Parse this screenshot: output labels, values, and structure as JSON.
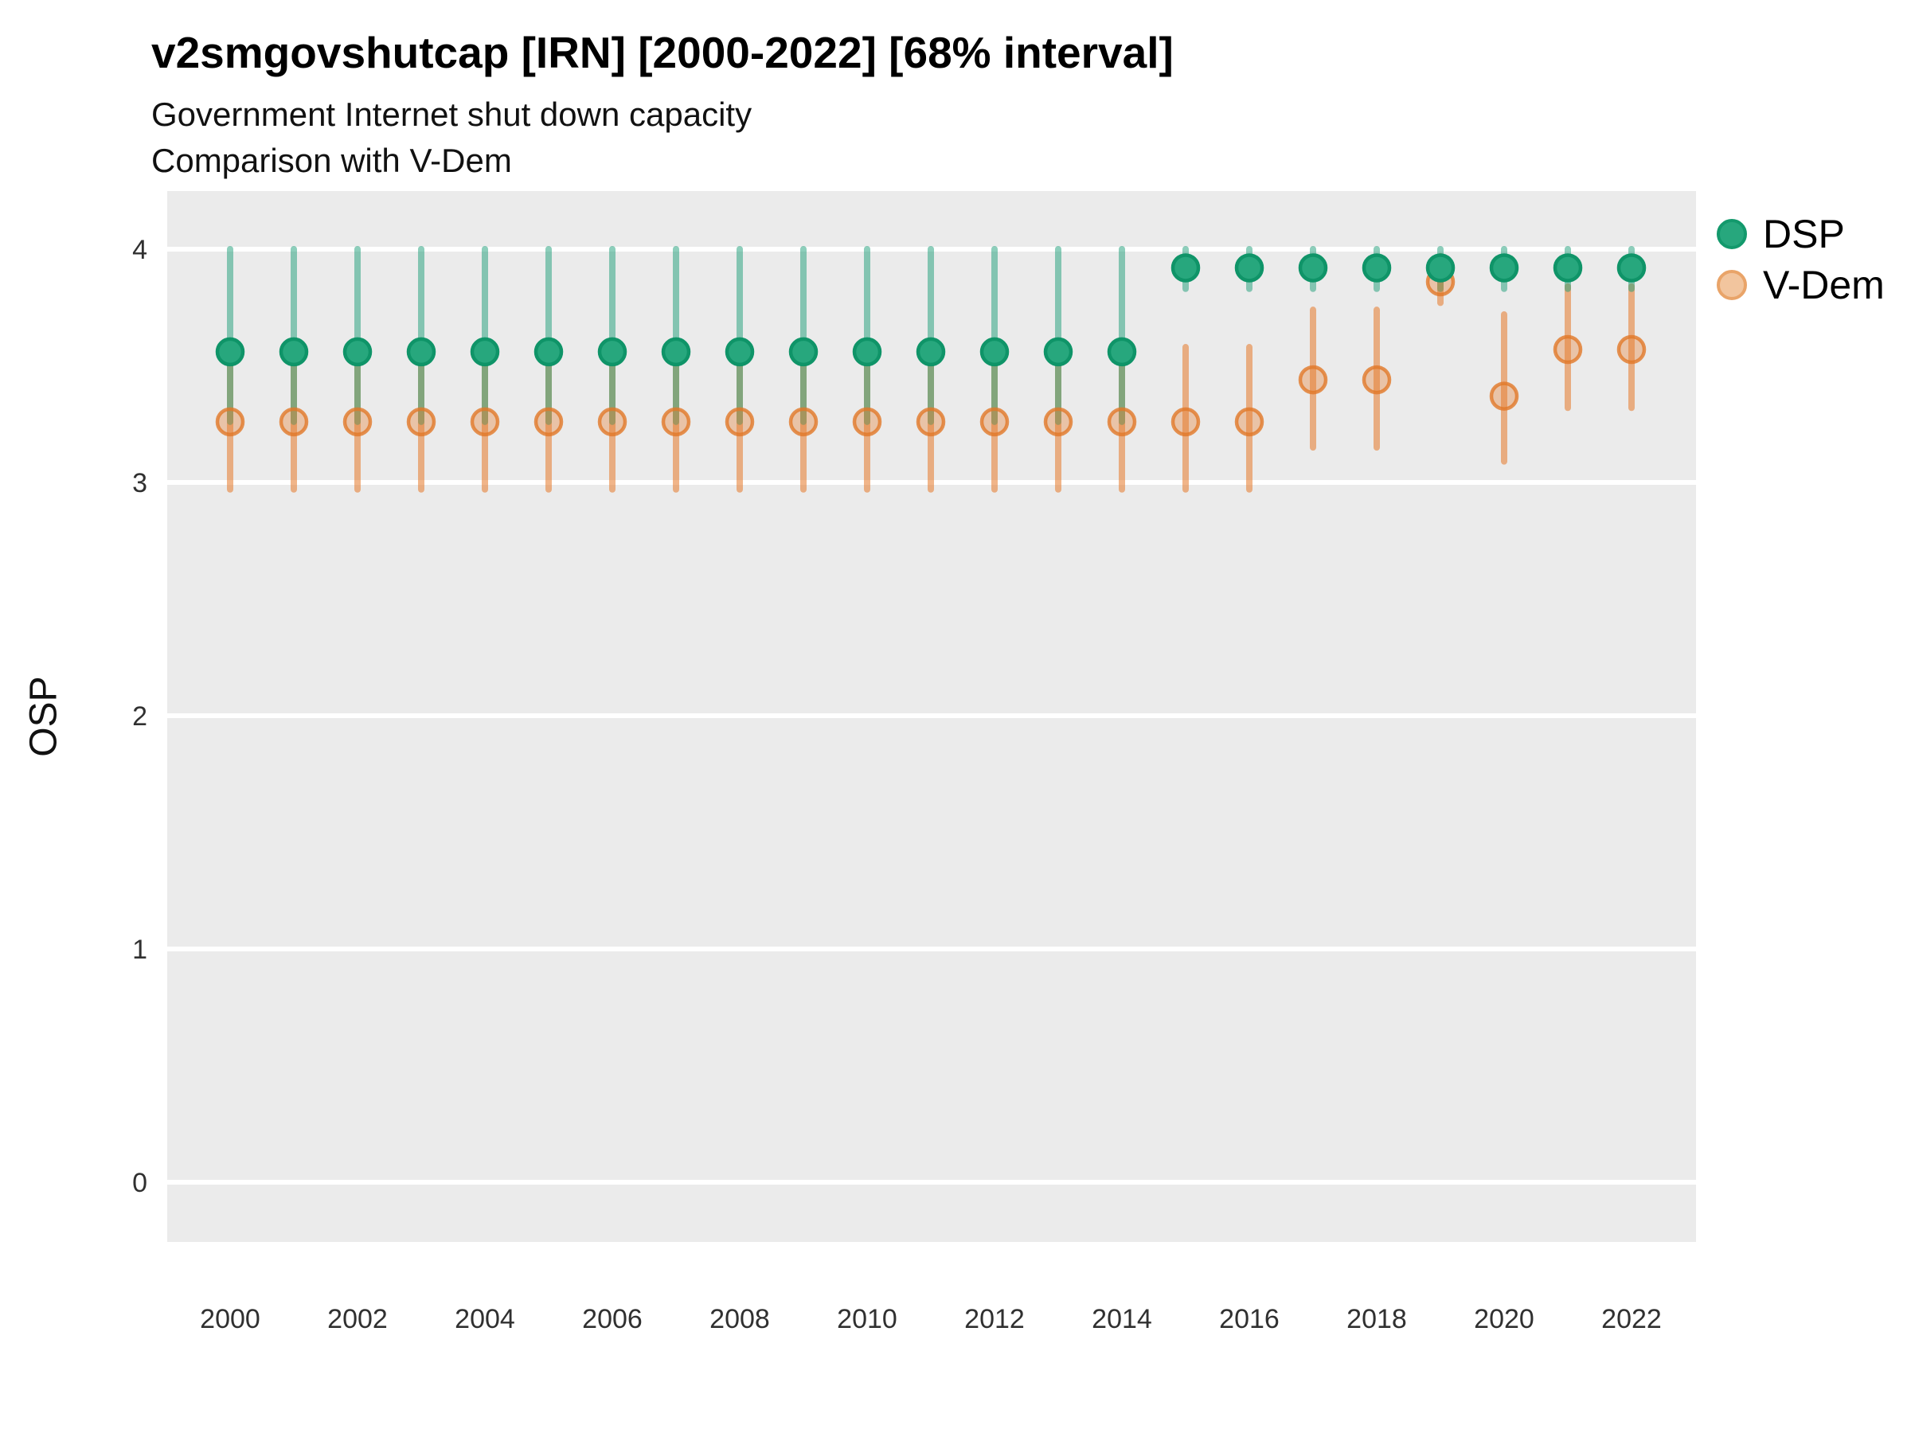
{
  "header": {
    "title": "v2smgovshutcap [IRN] [2000-2022] [68% interval]",
    "subtitle1": "Government Internet shut down capacity",
    "subtitle2": "Comparison with V-Dem"
  },
  "axes": {
    "y_title": "OSP",
    "y_tick_labels": [
      "4",
      "3",
      "2",
      "1",
      "0"
    ],
    "y_tick_values": [
      4,
      3,
      2,
      1,
      0
    ],
    "x_tick_labels": [
      "2000",
      "2002",
      "2004",
      "2006",
      "2008",
      "2010",
      "2012",
      "2014",
      "2016",
      "2018",
      "2020",
      "2022"
    ],
    "x_tick_values": [
      2000,
      2002,
      2004,
      2006,
      2008,
      2010,
      2012,
      2014,
      2016,
      2018,
      2020,
      2022
    ]
  },
  "legend": {
    "items": [
      {
        "label": "DSP",
        "fill": "#27a77d",
        "stroke": "#13996c"
      },
      {
        "label": "V-Dem",
        "fill": "#f2c59e",
        "stroke": "#e9a469"
      }
    ]
  },
  "colors": {
    "panel_background": "#ebebeb",
    "gridline": "#ffffff",
    "dsp_bar": "rgba(27,158,119,0.50)",
    "dsp_point_fill": "#27a77d",
    "dsp_point_stroke": "#0f9468",
    "vdem_bar": "rgba(230,120,40,0.55)",
    "vdem_point_fill": "rgba(230,120,40,0.35)",
    "vdem_point_stroke": "rgba(225,120,40,0.80)"
  },
  "chart_data": {
    "type": "pointrange",
    "title": "v2smgovshutcap [IRN] [2000-2022] [68% interval]",
    "subtitle": [
      "Government Internet shut down capacity",
      "Comparison with V-Dem"
    ],
    "interval": "68%",
    "xlabel": "",
    "ylabel": "OSP",
    "ylim": [
      0,
      4
    ],
    "xlim": [
      2000,
      2022
    ],
    "grid": "horizontal white gridlines on grey panel",
    "legend_position": "right-top",
    "years": [
      2000,
      2001,
      2002,
      2003,
      2004,
      2005,
      2006,
      2007,
      2008,
      2009,
      2010,
      2011,
      2012,
      2013,
      2014,
      2015,
      2016,
      2017,
      2018,
      2019,
      2020,
      2021,
      2022
    ],
    "series": [
      {
        "name": "DSP",
        "point": [
          3.56,
          3.56,
          3.56,
          3.56,
          3.56,
          3.56,
          3.56,
          3.56,
          3.56,
          3.56,
          3.56,
          3.56,
          3.56,
          3.56,
          3.56,
          3.92,
          3.92,
          3.92,
          3.92,
          3.92,
          3.92,
          3.92,
          3.92
        ],
        "lo": [
          3.26,
          3.26,
          3.26,
          3.26,
          3.26,
          3.26,
          3.26,
          3.26,
          3.26,
          3.26,
          3.26,
          3.26,
          3.26,
          3.26,
          3.26,
          3.83,
          3.83,
          3.83,
          3.83,
          3.83,
          3.83,
          3.83,
          3.83
        ],
        "hi": [
          4.0,
          4.0,
          4.0,
          4.0,
          4.0,
          4.0,
          4.0,
          4.0,
          4.0,
          4.0,
          4.0,
          4.0,
          4.0,
          4.0,
          4.0,
          4.0,
          4.0,
          4.0,
          4.0,
          4.0,
          4.0,
          4.0,
          4.0
        ]
      },
      {
        "name": "V-Dem",
        "point": [
          3.26,
          3.26,
          3.26,
          3.26,
          3.26,
          3.26,
          3.26,
          3.26,
          3.26,
          3.26,
          3.26,
          3.26,
          3.26,
          3.26,
          3.26,
          3.26,
          3.26,
          3.44,
          3.44,
          3.86,
          3.37,
          3.57,
          3.57
        ],
        "lo": [
          2.97,
          2.97,
          2.97,
          2.97,
          2.97,
          2.97,
          2.97,
          2.97,
          2.97,
          2.97,
          2.97,
          2.97,
          2.97,
          2.97,
          2.97,
          2.97,
          2.97,
          3.15,
          3.15,
          3.77,
          3.09,
          3.32,
          3.32
        ],
        "hi": [
          3.58,
          3.58,
          3.58,
          3.58,
          3.58,
          3.58,
          3.58,
          3.58,
          3.58,
          3.58,
          3.58,
          3.58,
          3.58,
          3.58,
          3.58,
          3.58,
          3.58,
          3.74,
          3.74,
          3.97,
          3.72,
          3.84,
          3.84
        ]
      }
    ]
  }
}
